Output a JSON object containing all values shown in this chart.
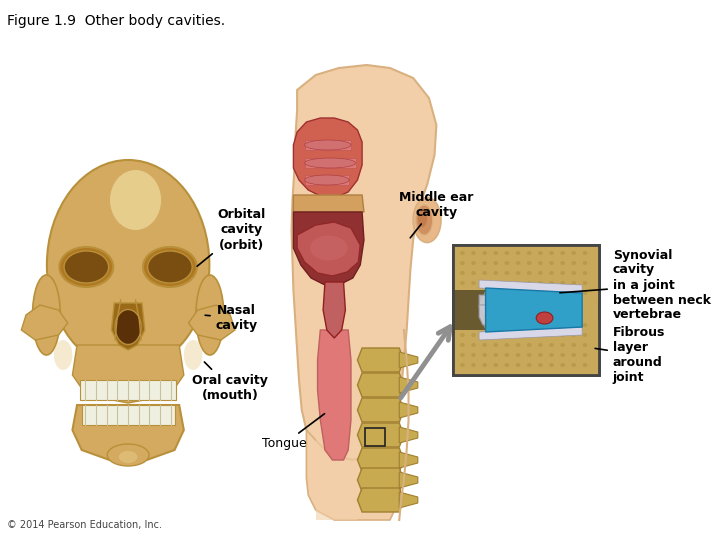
{
  "title": "Figure 1.9  Other body cavities.",
  "copyright": "© 2014 Pearson Education, Inc.",
  "background_color": "#ffffff",
  "labels": {
    "orbital_cavity": "Orbital\ncavity\n(orbit)",
    "nasal_cavity": "Nasal\ncavity",
    "oral_cavity": "Oral cavity\n(mouth)",
    "tongue": "Tongue",
    "middle_ear": "Middle ear\ncavity",
    "synovial_cavity": "Synovial\ncavity\nin a joint\nbetween neck\nvertebrae",
    "fibrous_layer": "Fibrous\nlayer\naround\njoint"
  },
  "skull_color_main": "#d4aa60",
  "skull_color_dark": "#b8903a",
  "skull_color_light": "#e8cc88",
  "skull_color_highlight": "#f0dca0",
  "skin_color": "#f2cfa8",
  "skin_color_dark": "#d9b080",
  "nasal_red": "#d06050",
  "nasal_red2": "#c84040",
  "oral_red": "#903030",
  "tongue_color": "#c05858",
  "pharynx_color": "#e07878",
  "spine_color": "#c8aa50",
  "joint_bg": "#c8a85a",
  "joint_blue": "#30a0c8",
  "joint_ligament": "#888899",
  "joint_dark": "#6a5a30",
  "title_fontsize": 10,
  "label_fontsize": 9
}
